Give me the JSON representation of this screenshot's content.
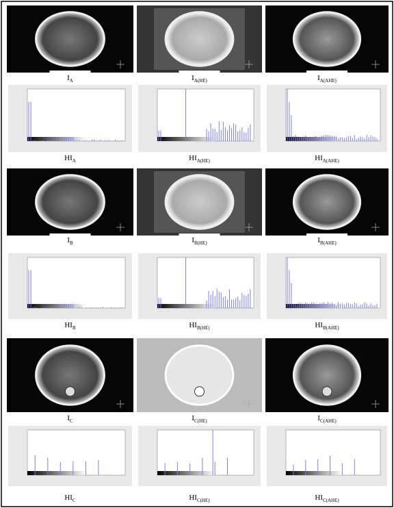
{
  "figure": {
    "rows": [
      {
        "images": [
          {
            "base": "I",
            "sub": "A"
          },
          {
            "base": "I",
            "sub": "A(HE)"
          },
          {
            "base": "I",
            "sub": "A(AHE)"
          }
        ],
        "histograms": [
          {
            "base": "HI",
            "sub": "A"
          },
          {
            "base": "HI",
            "sub": "A(HE)"
          },
          {
            "base": "HI",
            "sub": "A(AHE)"
          }
        ]
      },
      {
        "images": [
          {
            "base": "I",
            "sub": "B"
          },
          {
            "base": "I",
            "sub": "B(HE)"
          },
          {
            "base": "I",
            "sub": "B(AHE)"
          }
        ],
        "histograms": [
          {
            "base": "HI",
            "sub": "B"
          },
          {
            "base": "HI",
            "sub": "B(HE)"
          },
          {
            "base": "HI",
            "sub": "B(AHE)"
          }
        ]
      },
      {
        "images": [
          {
            "base": "I",
            "sub": "C"
          },
          {
            "base": "I",
            "sub": "C(HE)"
          },
          {
            "base": "I",
            "sub": "C(AHE)"
          }
        ],
        "histograms": [
          {
            "base": "HI",
            "sub": "C"
          },
          {
            "base": "HI",
            "sub": "C(HE)"
          },
          {
            "base": "HI",
            "sub": "C(AHE)"
          }
        ]
      }
    ]
  }
}
